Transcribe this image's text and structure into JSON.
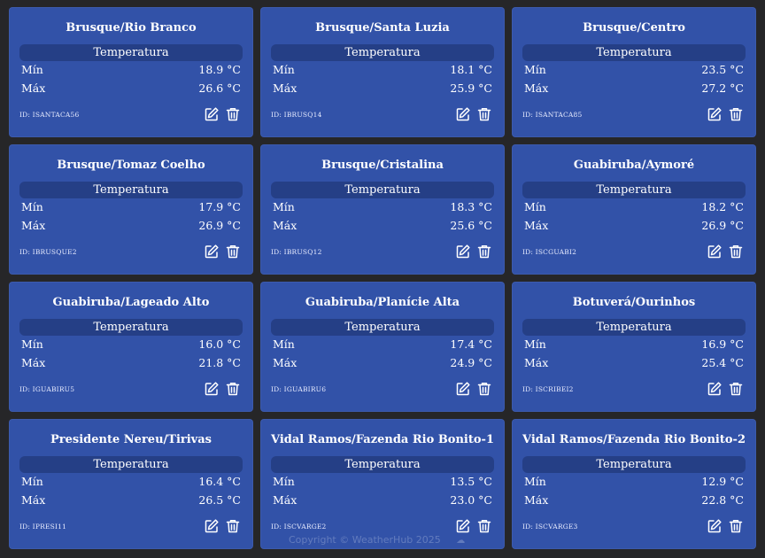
{
  "colors": {
    "background": "#262628",
    "card": "#3252a8",
    "metric_bar": "#253f86",
    "text": "#ffffff"
  },
  "icons": {
    "edit": "edit-icon",
    "delete": "trash-icon"
  },
  "cards": [
    {
      "title": "Brusque/Rio Branco",
      "metric": "Temperatura",
      "min_label": "Mín",
      "min": "18.9 °C",
      "max_label": "Máx",
      "max": "26.6 °C",
      "id": "ID: ISANTACA56"
    },
    {
      "title": "Brusque/Santa Luzia",
      "metric": "Temperatura",
      "min_label": "Mín",
      "min": "18.1 °C",
      "max_label": "Máx",
      "max": "25.9 °C",
      "id": "ID: IBRUSQ14"
    },
    {
      "title": "Brusque/Centro",
      "metric": "Temperatura",
      "min_label": "Mín",
      "min": "23.5 °C",
      "max_label": "Máx",
      "max": "27.2 °C",
      "id": "ID: ISANTACA85"
    },
    {
      "title": "Brusque/Tomaz Coelho",
      "metric": "Temperatura",
      "min_label": "Mín",
      "min": "17.9 °C",
      "max_label": "Máx",
      "max": "26.9 °C",
      "id": "ID: IBRUSQUE2"
    },
    {
      "title": "Brusque/Cristalina",
      "metric": "Temperatura",
      "min_label": "Mín",
      "min": "18.3 °C",
      "max_label": "Máx",
      "max": "25.6 °C",
      "id": "ID: IBRUSQ12"
    },
    {
      "title": "Guabiruba/Aymoré",
      "metric": "Temperatura",
      "min_label": "Mín",
      "min": "18.2 °C",
      "max_label": "Máx",
      "max": "26.9 °C",
      "id": "ID: ISCGUABI2"
    },
    {
      "title": "Guabiruba/Lageado Alto",
      "metric": "Temperatura",
      "min_label": "Mín",
      "min": "16.0 °C",
      "max_label": "Máx",
      "max": "21.8 °C",
      "id": "ID: IGUABIRU5"
    },
    {
      "title": "Guabiruba/Planície Alta",
      "metric": "Temperatura",
      "min_label": "Mín",
      "min": "17.4 °C",
      "max_label": "Máx",
      "max": "24.9 °C",
      "id": "ID: IGUABIRU6"
    },
    {
      "title": "Botuverá/Ourinhos",
      "metric": "Temperatura",
      "min_label": "Mín",
      "min": "16.9 °C",
      "max_label": "Máx",
      "max": "25.4 °C",
      "id": "ID: ISCRIBEI2"
    },
    {
      "title": "Presidente Nereu/Tirivas",
      "metric": "Temperatura",
      "min_label": "Mín",
      "min": "16.4 °C",
      "max_label": "Máx",
      "max": "26.5 °C",
      "id": "ID: IPRESI11"
    },
    {
      "title": "Vidal Ramos/Fazenda Rio Bonito-1",
      "metric": "Temperatura",
      "min_label": "Mín",
      "min": "13.5 °C",
      "max_label": "Máx",
      "max": "23.0 °C",
      "id": "ID: ISCVARGE2"
    },
    {
      "title": "Vidal Ramos/Fazenda Rio Bonito-2",
      "metric": "Temperatura",
      "min_label": "Mín",
      "min": "12.9 °C",
      "max_label": "Máx",
      "max": "22.8 °C",
      "id": "ID: ISCVARGE3"
    }
  ],
  "footer": {
    "text": "Copyright © WeatherHub 2025"
  }
}
